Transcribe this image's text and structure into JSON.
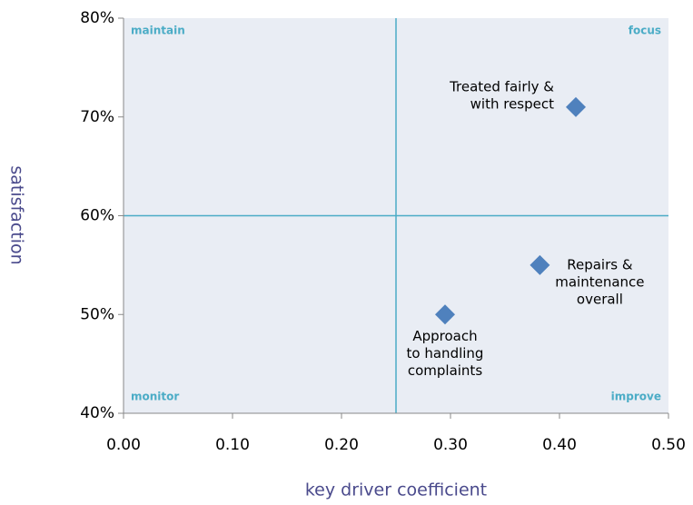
{
  "chart_data": {
    "type": "scatter",
    "x_label": "key driver coefficient",
    "y_label": "satisfaction",
    "xlim": [
      0,
      0.5
    ],
    "ylim": [
      40,
      80
    ],
    "xticks": [
      {
        "value": 0,
        "label": "0.00"
      },
      {
        "value": 0.1,
        "label": "0.10"
      },
      {
        "value": 0.2,
        "label": "0.20"
      },
      {
        "value": 0.3,
        "label": "0.30"
      },
      {
        "value": 0.4,
        "label": "0.40"
      },
      {
        "value": 0.5,
        "label": "0.50"
      }
    ],
    "yticks": [
      {
        "value": 40,
        "label": "40%"
      },
      {
        "value": 50,
        "label": "50%"
      },
      {
        "value": 60,
        "label": "60%"
      },
      {
        "value": 70,
        "label": "70%"
      },
      {
        "value": 80,
        "label": "80%"
      }
    ],
    "quadrant_x": 0.25,
    "quadrant_y": 60,
    "quadrants": {
      "top_left": "maintain",
      "top_right": "focus",
      "bottom_left": "monitor",
      "bottom_right": "improve"
    },
    "color": "#4f81bd",
    "x": [
      0.415,
      0.382,
      0.295
    ],
    "values": [
      71,
      55,
      50
    ],
    "labels": [
      [
        "Treated fairly &",
        "with respect"
      ],
      [
        "Repairs &",
        "maintenance",
        "overall"
      ],
      [
        "Approach",
        "to handling",
        "complaints"
      ]
    ]
  }
}
